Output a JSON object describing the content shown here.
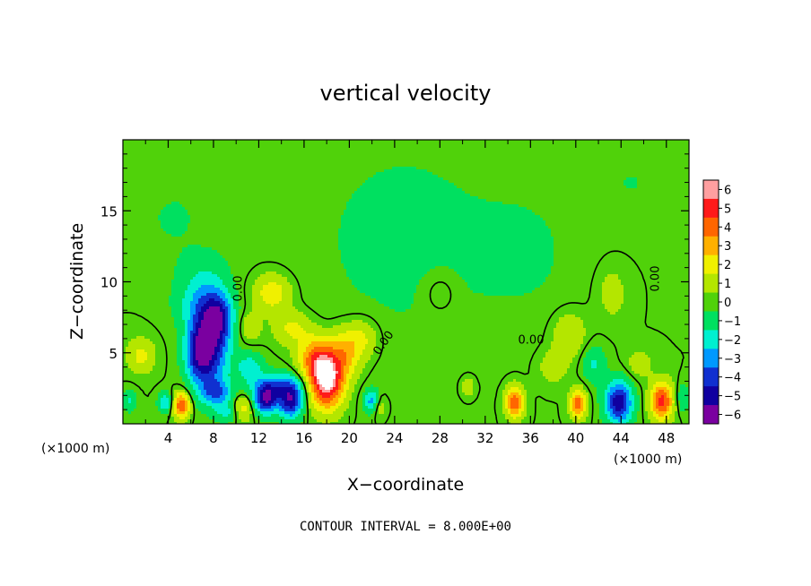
{
  "chart_data": {
    "type": "heatmap",
    "title": "vertical velocity",
    "xlabel": "X−coordinate",
    "ylabel": "Z−coordinate",
    "x_unit_left": "(×1000 m)",
    "x_unit_right": "(×1000 m)",
    "xlim": [
      0,
      50
    ],
    "ylim": [
      0,
      20
    ],
    "x_ticks": [
      4,
      8,
      12,
      16,
      20,
      24,
      28,
      32,
      36,
      40,
      44,
      48
    ],
    "x_tick_labels": [
      "4",
      "8",
      "12",
      "16",
      "20",
      "24",
      "28",
      "32",
      "36",
      "40",
      "44",
      "48"
    ],
    "y_ticks": [
      5,
      10,
      15
    ],
    "y_tick_labels": [
      "5",
      "10",
      "15"
    ],
    "footer": "CONTOUR INTERVAL = 8.000E+00",
    "contour_labels": [
      "0.00",
      "0.00",
      "0.00",
      "0.00"
    ],
    "colorbar": {
      "levels": [
        6,
        5,
        4,
        3,
        2,
        1,
        0,
        -1,
        -2,
        -3,
        -4,
        -5,
        -6
      ],
      "level_labels": [
        "6",
        "5",
        "4",
        "3",
        "2",
        "1",
        "0",
        "−1",
        "−2",
        "−3",
        "−4",
        "−5",
        "−6"
      ],
      "colors": [
        "#ff9fa0",
        "#ff1a1a",
        "#ff6600",
        "#ffb000",
        "#f0f000",
        "#b4e600",
        "#50d20a",
        "#00e060",
        "#00f0d0",
        "#0099ff",
        "#1030d0",
        "#1000a0",
        "#7a00a0"
      ]
    },
    "blobs": [
      {
        "x": 7.6,
        "z": 5.8,
        "rx": 1.7,
        "rz": 3.2,
        "v": -5.6
      },
      {
        "x": 6.6,
        "z": 4.8,
        "rx": 1.1,
        "rz": 1.8,
        "v": -2.5
      },
      {
        "x": 8.6,
        "z": 7.6,
        "rx": 1.2,
        "rz": 1.6,
        "v": -2.6
      },
      {
        "x": 6.6,
        "z": 8.6,
        "rx": 2.3,
        "rz": 1.8,
        "v": -1.4
      },
      {
        "x": 8.3,
        "z": 2.2,
        "rx": 1.3,
        "rz": 0.9,
        "v": -2.8
      },
      {
        "x": 12.6,
        "z": 1.7,
        "rx": 1.0,
        "rz": 1.0,
        "v": -5.2
      },
      {
        "x": 14.8,
        "z": 1.6,
        "rx": 1.1,
        "rz": 1.2,
        "v": -5.0
      },
      {
        "x": 13.6,
        "z": 2.7,
        "rx": 2.3,
        "rz": 0.9,
        "v": -2.8
      },
      {
        "x": 11.2,
        "z": 4.0,
        "rx": 1.2,
        "rz": 1.0,
        "v": -2.0
      },
      {
        "x": 9.2,
        "z": 0.8,
        "rx": 1.0,
        "rz": 0.7,
        "v": -1.6
      },
      {
        "x": 3.7,
        "z": 1.5,
        "rx": 0.6,
        "rz": 0.7,
        "v": -2.4
      },
      {
        "x": 0.6,
        "z": 1.6,
        "rx": 0.6,
        "rz": 0.8,
        "v": -1.6
      },
      {
        "x": 22.0,
        "z": 1.6,
        "rx": 0.7,
        "rz": 0.8,
        "v": -3.0
      },
      {
        "x": 43.8,
        "z": 1.5,
        "rx": 1.2,
        "rz": 1.5,
        "v": -5.2
      },
      {
        "x": 41.6,
        "z": 4.2,
        "rx": 1.0,
        "rz": 1.3,
        "v": -1.6
      },
      {
        "x": 49.4,
        "z": 1.8,
        "rx": 0.6,
        "rz": 1.0,
        "v": -1.4
      },
      {
        "x": 18.0,
        "z": 3.0,
        "rx": 1.5,
        "rz": 1.9,
        "v": 6.6
      },
      {
        "x": 17.0,
        "z": 4.6,
        "rx": 1.5,
        "rz": 1.5,
        "v": 3.4
      },
      {
        "x": 19.6,
        "z": 5.0,
        "rx": 1.4,
        "rz": 1.7,
        "v": 2.6
      },
      {
        "x": 21.2,
        "z": 6.0,
        "rx": 1.4,
        "rz": 1.4,
        "v": 1.6
      },
      {
        "x": 13.2,
        "z": 9.2,
        "rx": 1.6,
        "rz": 1.3,
        "v": 2.3
      },
      {
        "x": 15.0,
        "z": 6.7,
        "rx": 1.7,
        "rz": 1.2,
        "v": 1.8
      },
      {
        "x": 11.2,
        "z": 6.8,
        "rx": 1.0,
        "rz": 1.0,
        "v": 1.3
      },
      {
        "x": 5.2,
        "z": 1.3,
        "rx": 0.7,
        "rz": 0.9,
        "v": 4.7
      },
      {
        "x": 1.6,
        "z": 4.8,
        "rx": 1.2,
        "rz": 1.2,
        "v": 1.8
      },
      {
        "x": 10.6,
        "z": 1.1,
        "rx": 0.9,
        "rz": 0.9,
        "v": 2.0
      },
      {
        "x": 34.6,
        "z": 1.5,
        "rx": 0.8,
        "rz": 1.1,
        "v": 4.3
      },
      {
        "x": 40.2,
        "z": 1.4,
        "rx": 0.7,
        "rz": 1.0,
        "v": 4.1
      },
      {
        "x": 47.6,
        "z": 1.6,
        "rx": 1.0,
        "rz": 1.3,
        "v": 4.9
      },
      {
        "x": 39.4,
        "z": 6.3,
        "rx": 1.5,
        "rz": 1.6,
        "v": 1.5
      },
      {
        "x": 38.0,
        "z": 4.0,
        "rx": 1.3,
        "rz": 1.2,
        "v": 1.1
      },
      {
        "x": 45.6,
        "z": 4.2,
        "rx": 1.2,
        "rz": 1.1,
        "v": 1.0
      },
      {
        "x": 43.2,
        "z": 9.2,
        "rx": 1.4,
        "rz": 2.0,
        "v": 0.9
      },
      {
        "x": 30.5,
        "z": 2.6,
        "rx": 0.6,
        "rz": 0.7,
        "v": 1.2
      },
      {
        "x": 28.0,
        "z": 9.2,
        "rx": 1.5,
        "rz": 1.5,
        "v": 0.8
      },
      {
        "x": 22.6,
        "z": 1.3,
        "rx": 0.6,
        "rz": 0.8,
        "v": 1.6
      },
      {
        "x": 24.8,
        "z": 13.0,
        "rx": 9.0,
        "rz": 8.0,
        "v": -0.75
      },
      {
        "x": 36.0,
        "z": 12.0,
        "rx": 5.0,
        "rz": 5.0,
        "v": -0.5
      },
      {
        "x": 45.0,
        "z": 17.0,
        "rx": 4.0,
        "rz": 3.0,
        "v": -0.5
      },
      {
        "x": 4.5,
        "z": 14.5,
        "rx": 3.0,
        "rz": 2.5,
        "v": -0.6
      },
      {
        "x": 7.0,
        "z": 11.0,
        "rx": 2.5,
        "rz": 1.5,
        "v": -0.7
      }
    ]
  }
}
